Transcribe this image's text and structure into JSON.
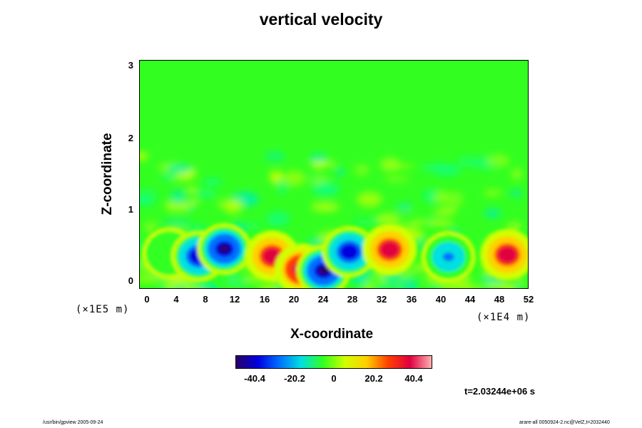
{
  "title": "vertical velocity",
  "chart_data": {
    "type": "heatmap",
    "title": "vertical velocity",
    "xlabel": "X-coordinate",
    "ylabel": "Z-coordinate",
    "x_scale": "(×1E4 m)",
    "y_scale": "(×1E5 m)",
    "xlim": [
      -1,
      52
    ],
    "ylim": [
      -0.1,
      3.05
    ],
    "x_ticks": [
      "0",
      "4",
      "8",
      "12",
      "16",
      "20",
      "24",
      "28",
      "32",
      "36",
      "40",
      "44",
      "48",
      "52"
    ],
    "y_ticks": [
      "0",
      "1",
      "2",
      "3"
    ],
    "colorbar": {
      "range": [
        -50,
        50
      ],
      "ticks": [
        "-40.4",
        "-20.2",
        "0",
        "20.2",
        "40.4"
      ],
      "colors": [
        "#2a0066",
        "#0000e0",
        "#0070ff",
        "#00e0e0",
        "#32ff20",
        "#d0ff00",
        "#ffd000",
        "#ff4000",
        "#e00040",
        "#ffb0b0"
      ]
    },
    "features": [
      {
        "x": 3.0,
        "z": 0.4,
        "w": -1
      },
      {
        "x": 7.0,
        "z": 0.36,
        "w": -40
      },
      {
        "x": 10.5,
        "z": 0.46,
        "w": -45
      },
      {
        "x": 17.0,
        "z": 0.36,
        "w": 40
      },
      {
        "x": 21.0,
        "z": 0.18,
        "w": 45
      },
      {
        "x": 24.0,
        "z": 0.16,
        "w": -48
      },
      {
        "x": 27.5,
        "z": 0.42,
        "w": -40
      },
      {
        "x": 33.0,
        "z": 0.45,
        "w": 42
      },
      {
        "x": 41.0,
        "z": 0.35,
        "w": -25
      },
      {
        "x": 49.0,
        "z": 0.38,
        "w": 40
      }
    ],
    "time_label": "t=2.03244e+06 s"
  },
  "footer": {
    "left": "/usr/bin/gpview 2005-09-24",
    "right": "arare-all 0050924-2.nc@VelZ,t=2032440"
  }
}
